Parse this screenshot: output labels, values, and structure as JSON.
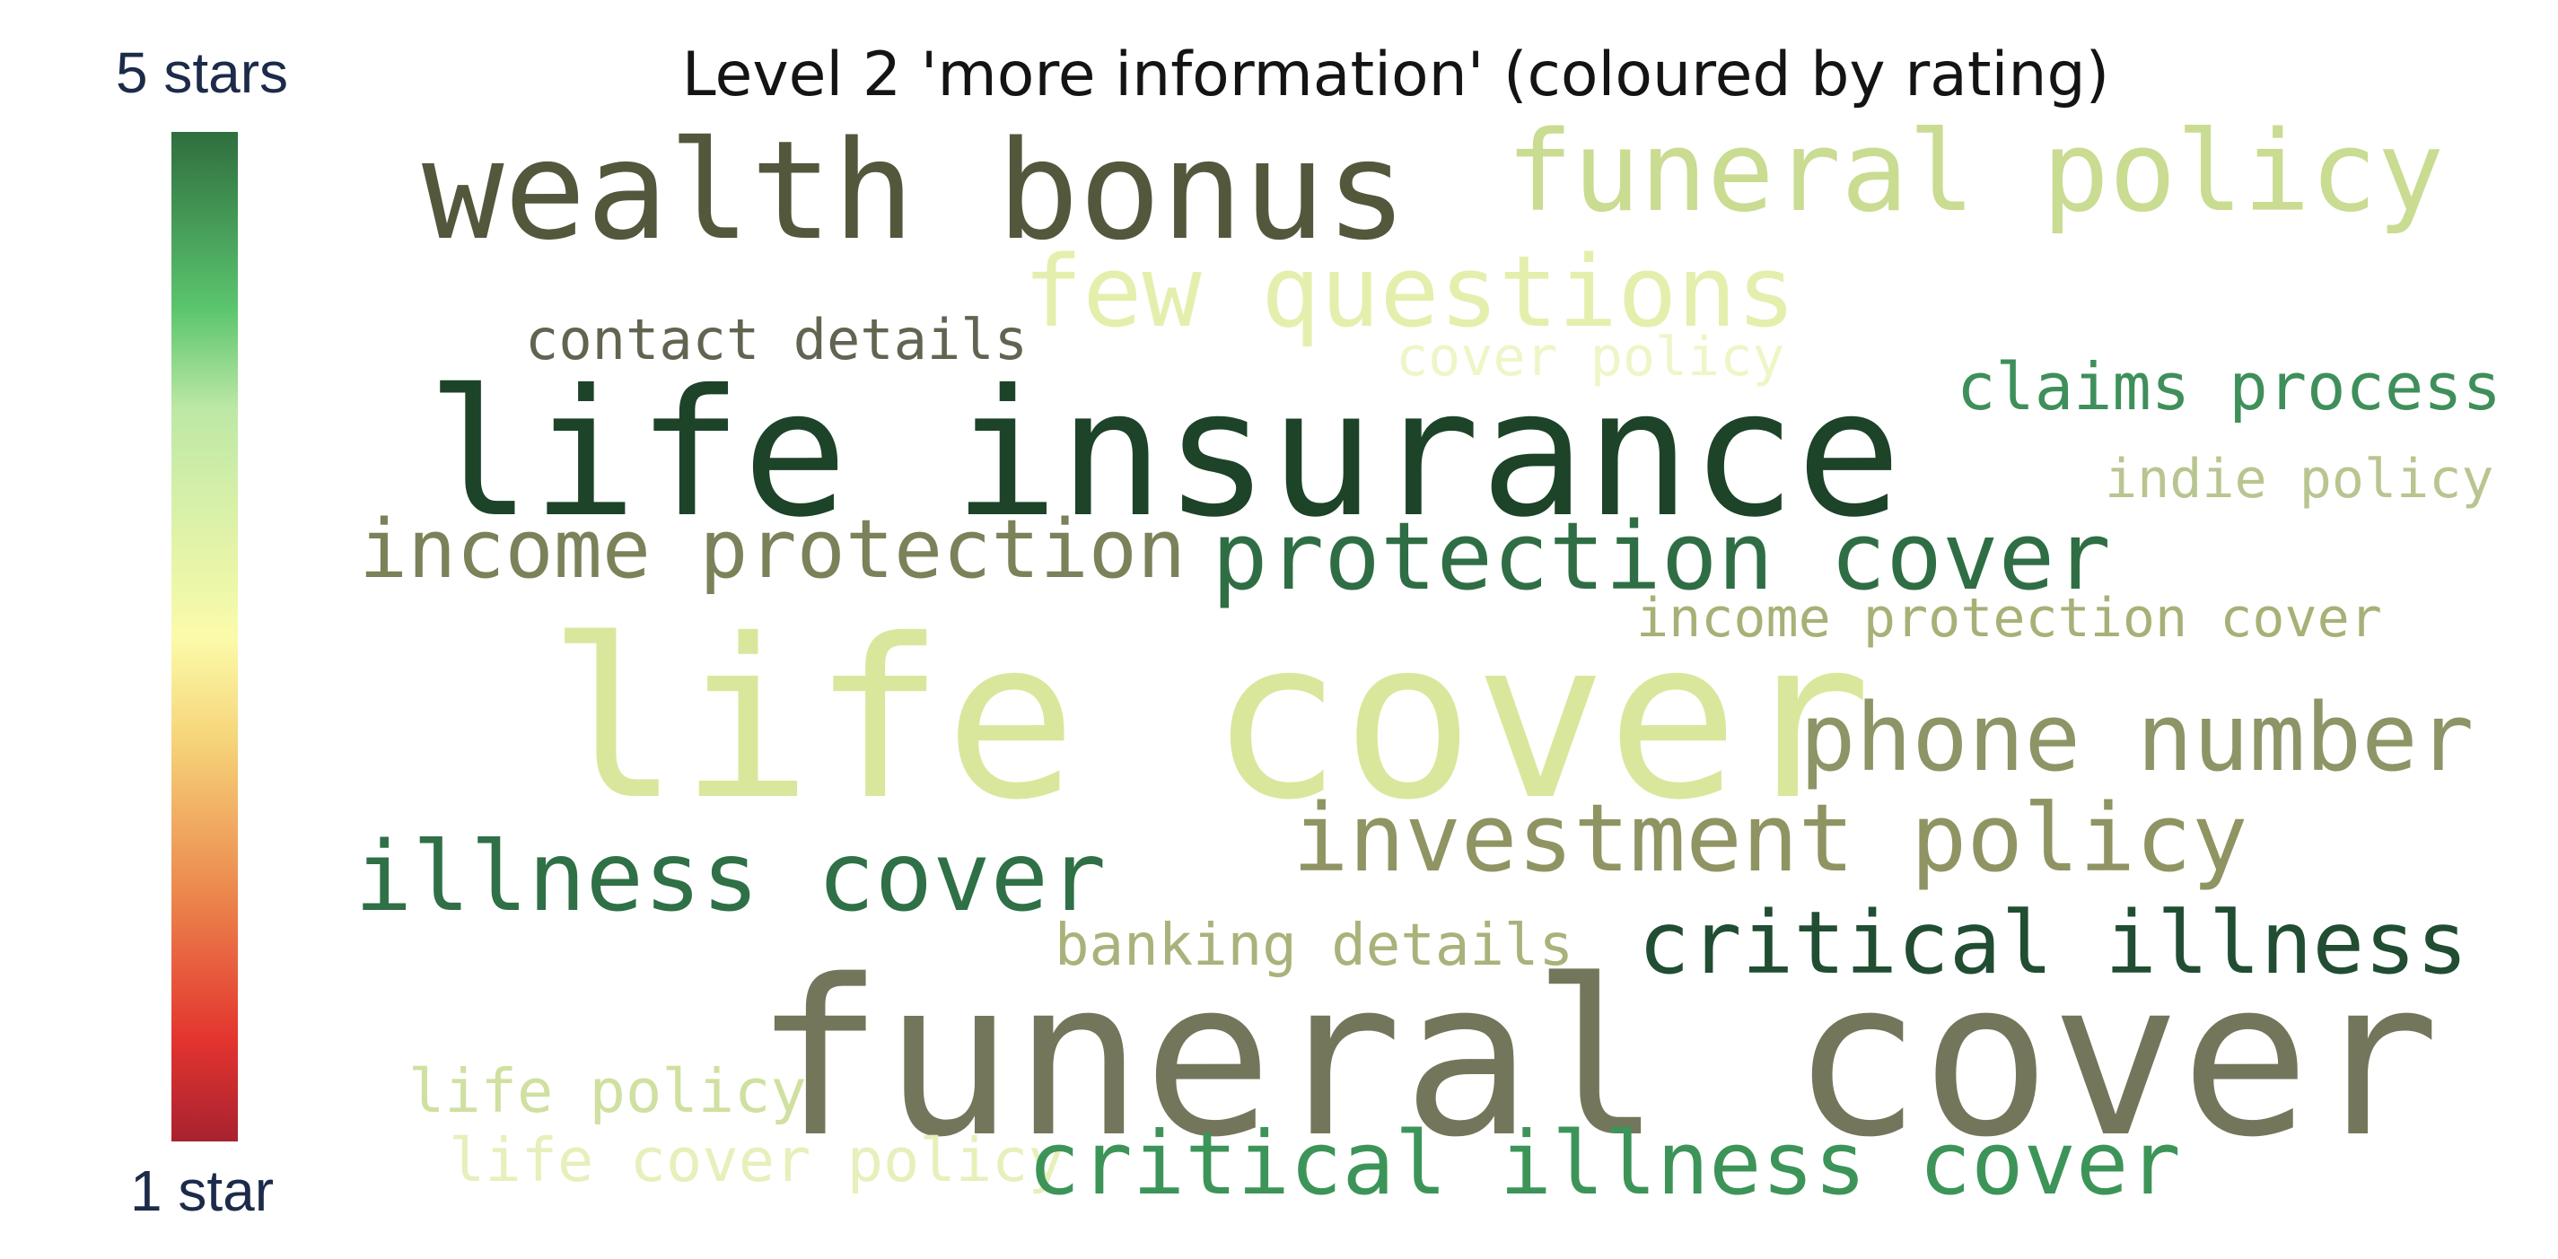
{
  "chart_data": {
    "type": "wordcloud",
    "title": "Level 2 'more information' (coloured by rating)",
    "colorbar": {
      "top_label": "5 stars",
      "bottom_label": "1 star",
      "range": [
        1,
        5
      ],
      "stops": [
        {
          "value": 5.0,
          "color": "#2f6e3f"
        },
        {
          "value": 4.3,
          "color": "#5bc56e"
        },
        {
          "value": 3.9,
          "color": "#bde8a6"
        },
        {
          "value": 3.0,
          "color": "#fbfbaa"
        },
        {
          "value": 2.6,
          "color": "#f6d57a"
        },
        {
          "value": 2.0,
          "color": "#ec8a4e"
        },
        {
          "value": 1.4,
          "color": "#e3342f"
        },
        {
          "value": 1.0,
          "color": "#a8222f"
        }
      ]
    },
    "words": [
      {
        "text": "wealth bonus",
        "color": "#53583c"
      },
      {
        "text": "funeral policy",
        "color": "#c9dc92"
      },
      {
        "text": "few questions",
        "color": "#e4efad"
      },
      {
        "text": "contact details",
        "color": "#5f6550"
      },
      {
        "text": "cover policy",
        "color": "#eef6c8"
      },
      {
        "text": "claims process",
        "color": "#3f8f5a"
      },
      {
        "text": "life insurance",
        "color": "#1d4329"
      },
      {
        "text": "indie policy",
        "color": "#b9c590"
      },
      {
        "text": "income protection",
        "color": "#7b8159"
      },
      {
        "text": "protection cover",
        "color": "#2f6e44"
      },
      {
        "text": "income protection cover",
        "color": "#a8b077"
      },
      {
        "text": "life cover",
        "color": "#d9e79c"
      },
      {
        "text": "phone number",
        "color": "#8d9466"
      },
      {
        "text": "investment policy",
        "color": "#8f9462"
      },
      {
        "text": "illness cover",
        "color": "#2f7047"
      },
      {
        "text": "banking details",
        "color": "#a9b27a"
      },
      {
        "text": "critical illness",
        "color": "#214d33"
      },
      {
        "text": "funeral cover",
        "color": "#74765c"
      },
      {
        "text": "life policy",
        "color": "#cfe0a0"
      },
      {
        "text": "life cover policy",
        "color": "#e6f0bb"
      },
      {
        "text": "critical illness cover",
        "color": "#3d9459"
      }
    ]
  }
}
